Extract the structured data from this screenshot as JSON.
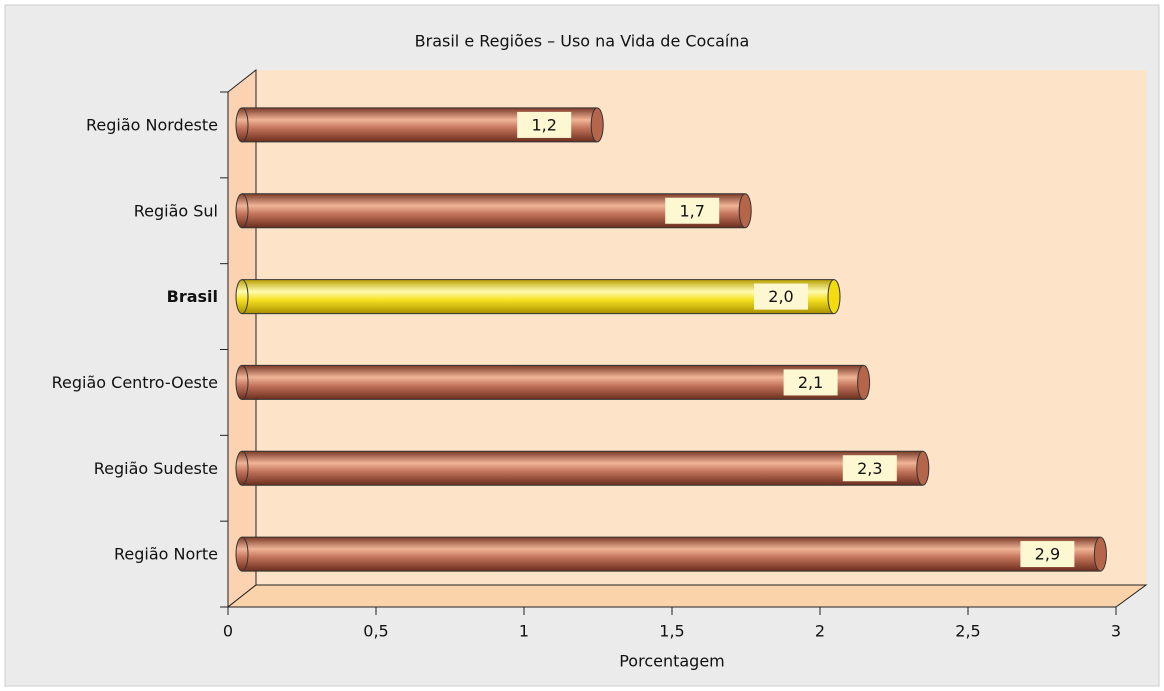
{
  "chart_data": {
    "type": "bar",
    "orientation": "horizontal",
    "title": "Brasil e Regiões – Uso na Vida de Cocaína",
    "xlabel": "Porcentagem",
    "categories": [
      "Região Nordeste",
      "Região Sul",
      "Brasil",
      "Região Centro-Oeste",
      "Região Sudeste",
      "Região Norte"
    ],
    "values": [
      1.2,
      1.7,
      2.0,
      2.1,
      2.3,
      2.9
    ],
    "value_labels": [
      "1,2",
      "1,7",
      "2,0",
      "2,1",
      "2,3",
      "2,9"
    ],
    "colors": [
      "#b5654a",
      "#b5654a",
      "#f2dc10",
      "#b5654a",
      "#b5654a",
      "#b5654a"
    ],
    "bold_categories": [
      false,
      false,
      true,
      false,
      false,
      false
    ],
    "xlim": [
      0,
      3
    ],
    "xticks": [
      0,
      {
        "value": 0.5,
        "label": "0,5"
      },
      1,
      {
        "value": 1.5,
        "label": "1,5"
      },
      2,
      {
        "value": 2.5,
        "label": "2,5"
      },
      3
    ]
  }
}
